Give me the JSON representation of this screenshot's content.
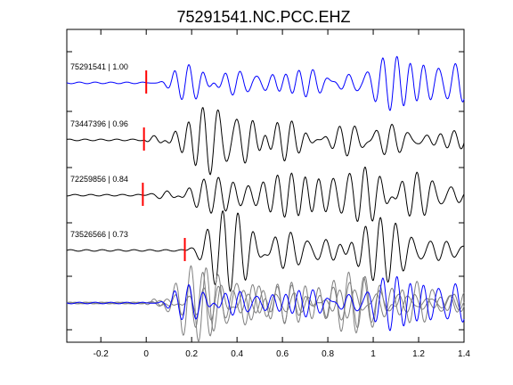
{
  "chart_data": {
    "type": "line",
    "title": "75291541.NC.PCC.EHZ",
    "xlabel": "",
    "ylabel": "",
    "xlim": [
      -0.35,
      1.4
    ],
    "x_ticks": [
      {
        "value": -0.2,
        "label": "-0.2"
      },
      {
        "value": 0,
        "label": "0"
      },
      {
        "value": 0.2,
        "label": "0.2"
      },
      {
        "value": 0.4,
        "label": "0.4"
      },
      {
        "value": 0.6,
        "label": "0.6"
      },
      {
        "value": 0.8,
        "label": "0.8"
      },
      {
        "value": 1.0,
        "label": "1"
      },
      {
        "value": 1.2,
        "label": "1.2"
      },
      {
        "value": 1.4,
        "label": "1.4"
      }
    ],
    "grid": false,
    "series": [
      {
        "name": "75291541 | 1.00",
        "color": "#0000ff",
        "pick_time": 0.0,
        "seed": 3,
        "amplitude": 1.0,
        "lane": 1
      },
      {
        "name": "73447396 | 0.96",
        "color": "#000000",
        "pick_time": -0.01,
        "seed": 7,
        "amplitude": 0.95,
        "lane": 2
      },
      {
        "name": "72259856 | 0.84",
        "color": "#000000",
        "pick_time": -0.015,
        "seed": 11,
        "amplitude": 0.9,
        "lane": 3
      },
      {
        "name": "73526566 | 0.73",
        "color": "#000000",
        "pick_time": 0.17,
        "seed": 19,
        "amplitude": 0.85,
        "lane": 4
      }
    ],
    "stack": {
      "lane": 5,
      "lines": [
        {
          "color": "#808080",
          "seed": 7,
          "shift": -0.01,
          "amplitude": 0.9
        },
        {
          "color": "#808080",
          "seed": 11,
          "shift": -0.015,
          "amplitude": 0.85
        },
        {
          "color": "#808080",
          "seed": 19,
          "shift": 0.03,
          "amplitude": 0.8
        },
        {
          "color": "#0000ff",
          "seed": 3,
          "shift": 0.0,
          "amplitude": 1.0
        }
      ]
    },
    "pick_color": "#ff0000"
  }
}
